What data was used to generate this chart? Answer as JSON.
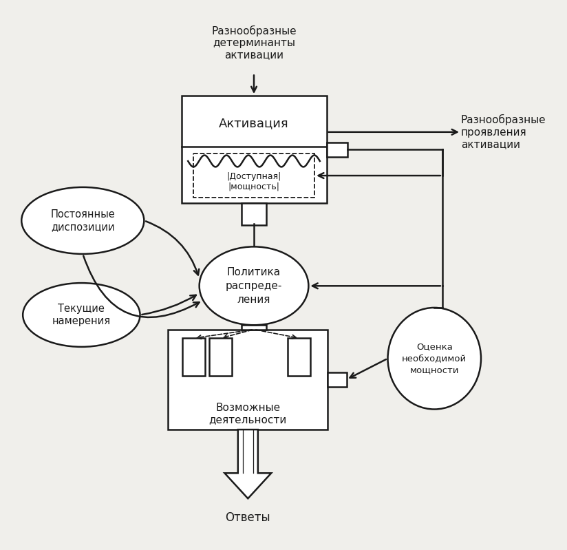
{
  "bg_color": "#f0efeb",
  "box_color": "#ffffff",
  "edge_color": "#1a1a1a",
  "text_color": "#1a1a1a",
  "top_text": "Разнообразные\nдетерминанты\nактивации",
  "right_text": "Разнообразные\nпроявления\nактивации",
  "act_label": "Активация",
  "avail_label": "|Доступная|\n|мощность|",
  "policy_label": "Политика\nраспреде-\nления",
  "act_box_label": "Возможные\nдеятельности",
  "responses_label": "Ответы",
  "ellipse1_label": "Постоянные\nдиспозиции",
  "ellipse2_label": "Текущие\nнамерения",
  "circle_label": "Оценка\nнеобходимой\nмощности"
}
